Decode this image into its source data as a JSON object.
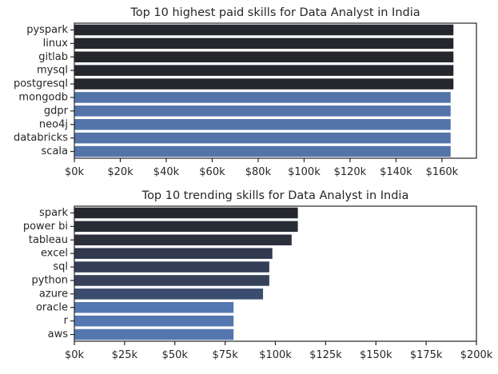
{
  "chart_data": [
    {
      "type": "bar",
      "orientation": "horizontal",
      "title": "Top 10 highest paid skills for Data Analyst in India",
      "xlabel": "",
      "ylabel": "",
      "xlim": [
        0,
        175000
      ],
      "x_tick_values": [
        0,
        20000,
        40000,
        60000,
        80000,
        100000,
        120000,
        140000,
        160000
      ],
      "x_tick_labels": [
        "$0k",
        "$20k",
        "$40k",
        "$60k",
        "$80k",
        "$100k",
        "$120k",
        "$140k",
        "$160k"
      ],
      "categories": [
        "pyspark",
        "linux",
        "gitlab",
        "mysql",
        "postgresql",
        "mongodb",
        "gdpr",
        "neo4j",
        "databricks",
        "scala"
      ],
      "values": [
        165000,
        165000,
        165000,
        165000,
        165000,
        163782,
        163782,
        163782,
        163782,
        163782
      ],
      "colors": [
        "#25272d",
        "#25272d",
        "#25272d",
        "#25272d",
        "#25272d",
        "#5373a9",
        "#5373a9",
        "#5373a9",
        "#5373a9",
        "#5373a9"
      ],
      "grid": false,
      "legend": "none"
    },
    {
      "type": "bar",
      "orientation": "horizontal",
      "title": "Top 10 trending skills for Data Analyst in India",
      "xlabel": "",
      "ylabel": "",
      "xlim": [
        0,
        200000
      ],
      "x_tick_values": [
        0,
        25000,
        50000,
        75000,
        100000,
        125000,
        150000,
        175000,
        200000
      ],
      "x_tick_labels": [
        "$0k",
        "$25k",
        "$50k",
        "$75k",
        "$100k",
        "$125k",
        "$150k",
        "$175k",
        "$200k"
      ],
      "categories": [
        "spark",
        "power bi",
        "tableau",
        "excel",
        "sql",
        "python",
        "azure",
        "oracle",
        "r",
        "aws"
      ],
      "values": [
        111175,
        111175,
        108087,
        98500,
        96967,
        96967,
        93867,
        79200,
        79200,
        79200
      ],
      "colors": [
        "#25272d",
        "#272c36",
        "#2b303c",
        "#30394e",
        "#333e56",
        "#354259",
        "#3b4d6e",
        "#5577b0",
        "#5577b0",
        "#5577b0"
      ],
      "grid": false,
      "legend": "none"
    }
  ]
}
